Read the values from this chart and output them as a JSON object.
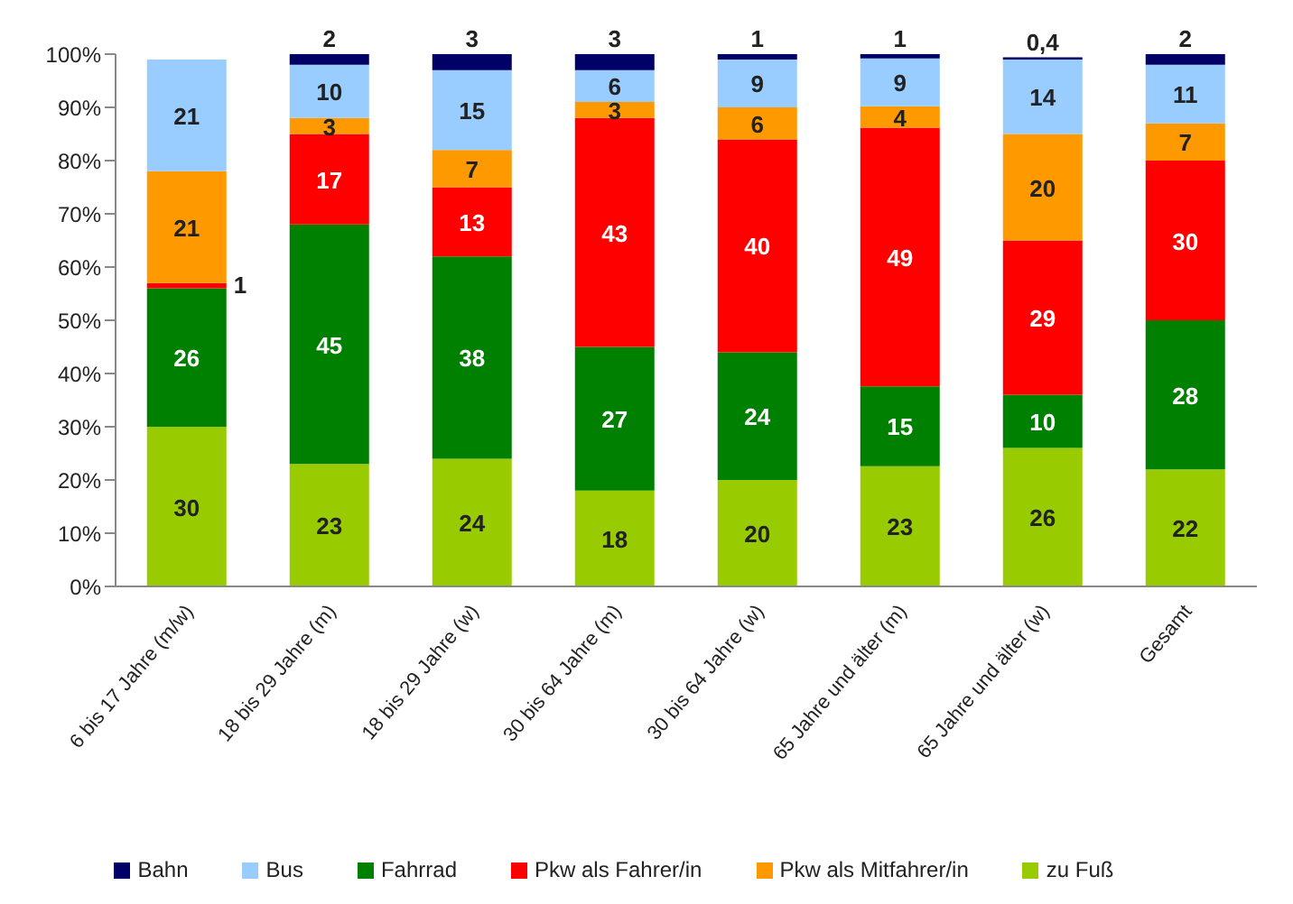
{
  "chart_data": {
    "type": "bar",
    "stacked": true,
    "categories": [
      "6 bis 17 Jahre (m/w)",
      "18 bis 29 Jahre (m)",
      "18 bis 29 Jahre (w)",
      "30 bis 64 Jahre (m)",
      "30 bis 64 Jahre (w)",
      "65 Jahre und älter (m)",
      "65 Jahre und älter (w)",
      "Gesamt"
    ],
    "series": [
      {
        "name": "zu Fuß",
        "color": "#99cc00",
        "values": [
          30,
          23,
          24,
          18,
          20,
          22.6,
          26,
          22
        ],
        "value_labels": [
          "30",
          "23",
          "24",
          "18",
          "20",
          "23",
          "26",
          "22"
        ]
      },
      {
        "name": "Fahrrad",
        "color": "#008000",
        "values": [
          26,
          45,
          38,
          27,
          24,
          15,
          10,
          28
        ],
        "value_labels": [
          "26",
          "45",
          "38",
          "27",
          "24",
          "15",
          "10",
          "28"
        ]
      },
      {
        "name": "Pkw als Fahrer/in",
        "color": "#ff0000",
        "values": [
          1,
          17,
          13,
          43,
          40,
          48.6,
          29,
          30
        ],
        "value_labels": [
          "1",
          "17",
          "13",
          "43",
          "40",
          "49",
          "29",
          "30"
        ]
      },
      {
        "name": "Pkw als Mitfahrer/in",
        "color": "#ff9900",
        "values": [
          21,
          3,
          7,
          3,
          6,
          4,
          20,
          7
        ],
        "value_labels": [
          "21",
          "3",
          "7",
          "3",
          "6",
          "4",
          "20",
          "7"
        ]
      },
      {
        "name": "Bus",
        "color": "#99ccff",
        "values": [
          21,
          10,
          15,
          6,
          9,
          9,
          14,
          11
        ],
        "value_labels": [
          "21",
          "10",
          "15",
          "6",
          "9",
          "9",
          "14",
          "11"
        ]
      },
      {
        "name": "Bahn",
        "color": "#000066",
        "values": [
          null,
          2,
          3,
          3,
          1,
          0.8,
          0.4,
          2
        ],
        "value_labels": [
          null,
          "2",
          "3",
          "3",
          "1",
          "1",
          "0,4",
          "2"
        ]
      }
    ],
    "ylim": [
      0,
      100
    ],
    "yticks": [
      {
        "value": 0,
        "label": "0%"
      },
      {
        "value": 10,
        "label": "10%"
      },
      {
        "value": 20,
        "label": "20%"
      },
      {
        "value": 30,
        "label": "30%"
      },
      {
        "value": 40,
        "label": "40%"
      },
      {
        "value": 50,
        "label": "50%"
      },
      {
        "value": 60,
        "label": "60%"
      },
      {
        "value": 70,
        "label": "70%"
      },
      {
        "value": 80,
        "label": "80%"
      },
      {
        "value": 90,
        "label": "90%"
      },
      {
        "value": 100,
        "label": "100%"
      }
    ],
    "grid": false,
    "legend": "bottom"
  }
}
